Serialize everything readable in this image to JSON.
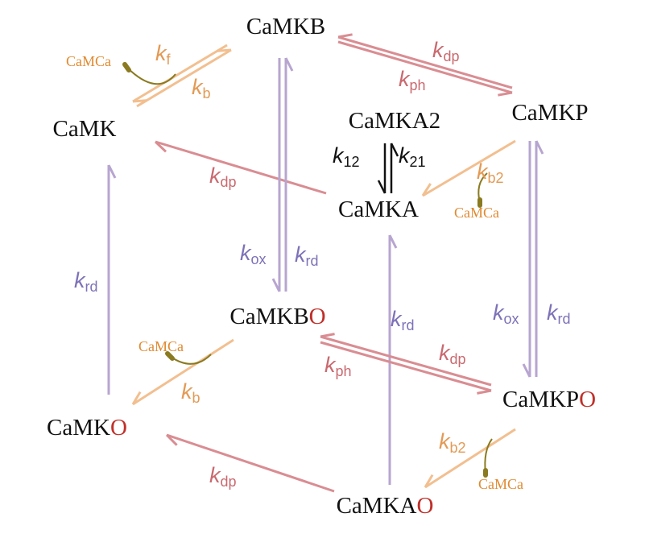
{
  "nodes": [
    {
      "label": "CaMKB"
    },
    {
      "label": "CaMK"
    },
    {
      "label": "CaMKA2"
    },
    {
      "label": "CaMKP"
    },
    {
      "label": "CaMKA"
    },
    {
      "label": "CaMKB",
      "suffix": "O"
    },
    {
      "label": "CaMKP",
      "suffix": "O"
    },
    {
      "label": "CaMK",
      "suffix": "O"
    },
    {
      "label": "CaMKA",
      "suffix": "O"
    }
  ],
  "rates": [
    {
      "symbol": "k",
      "sub": "f"
    },
    {
      "symbol": "k",
      "sub": "b"
    },
    {
      "symbol": "k",
      "sub": "dp"
    },
    {
      "symbol": "k",
      "sub": "ph"
    },
    {
      "symbol": "k",
      "sub": "dp"
    },
    {
      "symbol": "k",
      "sub": "12"
    },
    {
      "symbol": "k",
      "sub": "21"
    },
    {
      "symbol": "k",
      "sub": "b2"
    },
    {
      "symbol": "k",
      "sub": "ox"
    },
    {
      "symbol": "k",
      "sub": "rd"
    },
    {
      "symbol": "k",
      "sub": "rd"
    },
    {
      "symbol": "k",
      "sub": "rd"
    },
    {
      "symbol": "k",
      "sub": "ox"
    },
    {
      "symbol": "k",
      "sub": "rd"
    },
    {
      "symbol": "k",
      "sub": "dp"
    },
    {
      "symbol": "k",
      "sub": "ph"
    },
    {
      "symbol": "k",
      "sub": "b"
    },
    {
      "symbol": "k",
      "sub": "b2"
    },
    {
      "symbol": "k",
      "sub": "dp"
    }
  ],
  "ligands": [
    "CaMCa",
    "CaMCa",
    "CaMCa",
    "CaMCa"
  ]
}
